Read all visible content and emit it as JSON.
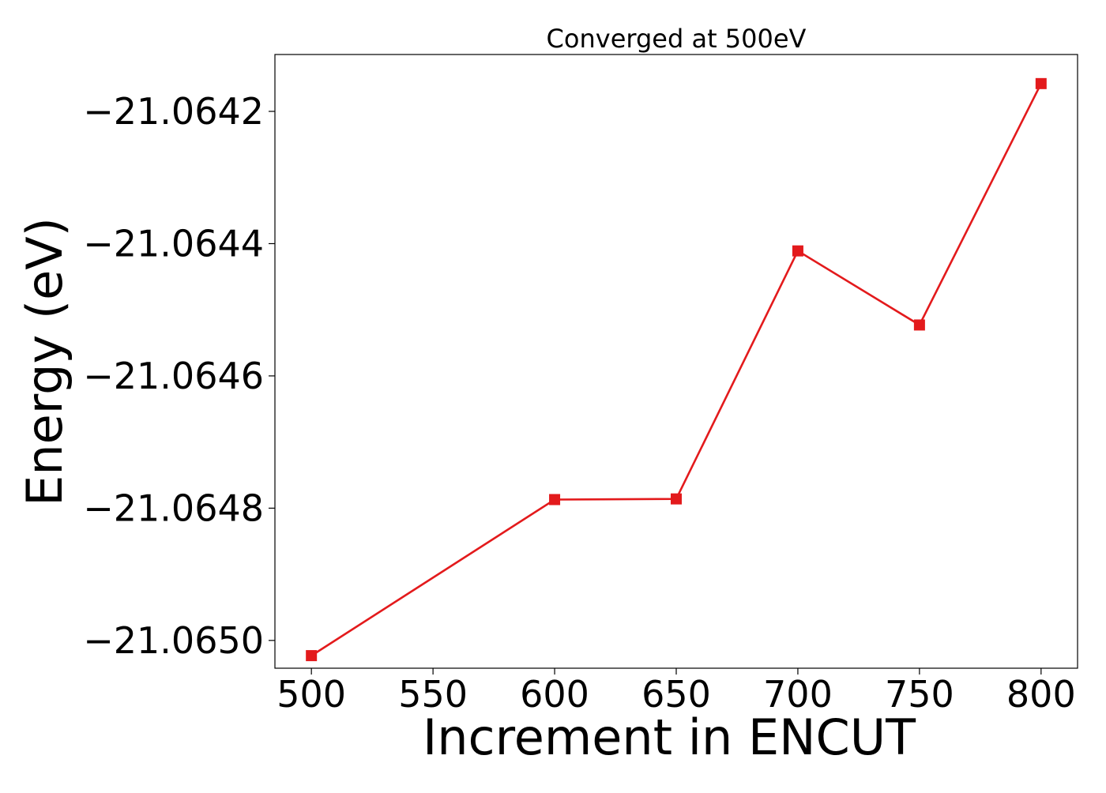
{
  "chart_data": {
    "type": "line",
    "title": "Converged at 500eV",
    "xlabel": "Increment in ENCUT",
    "ylabel": "Energy (eV)",
    "x": [
      500,
      600,
      650,
      700,
      750,
      800
    ],
    "series": [
      {
        "values": [
          -21.065023,
          -21.064787,
          -21.064786,
          -21.064411,
          -21.064523,
          -21.064158
        ],
        "color": "#e31a1c",
        "marker": "square"
      }
    ],
    "xticks": [
      500,
      550,
      600,
      650,
      700,
      750,
      800
    ],
    "xtick_labels": [
      "500",
      "550",
      "600",
      "650",
      "700",
      "750",
      "800"
    ],
    "yticks": [
      -21.065,
      -21.0648,
      -21.0646,
      -21.0644,
      -21.0642
    ],
    "ytick_labels": [
      "−21.0650",
      "−21.0648",
      "−21.0646",
      "−21.0644",
      "−21.0642"
    ],
    "xlim": [
      485,
      815
    ],
    "ylim": [
      -21.065042,
      -21.064114
    ],
    "grid": false,
    "legend": false
  }
}
